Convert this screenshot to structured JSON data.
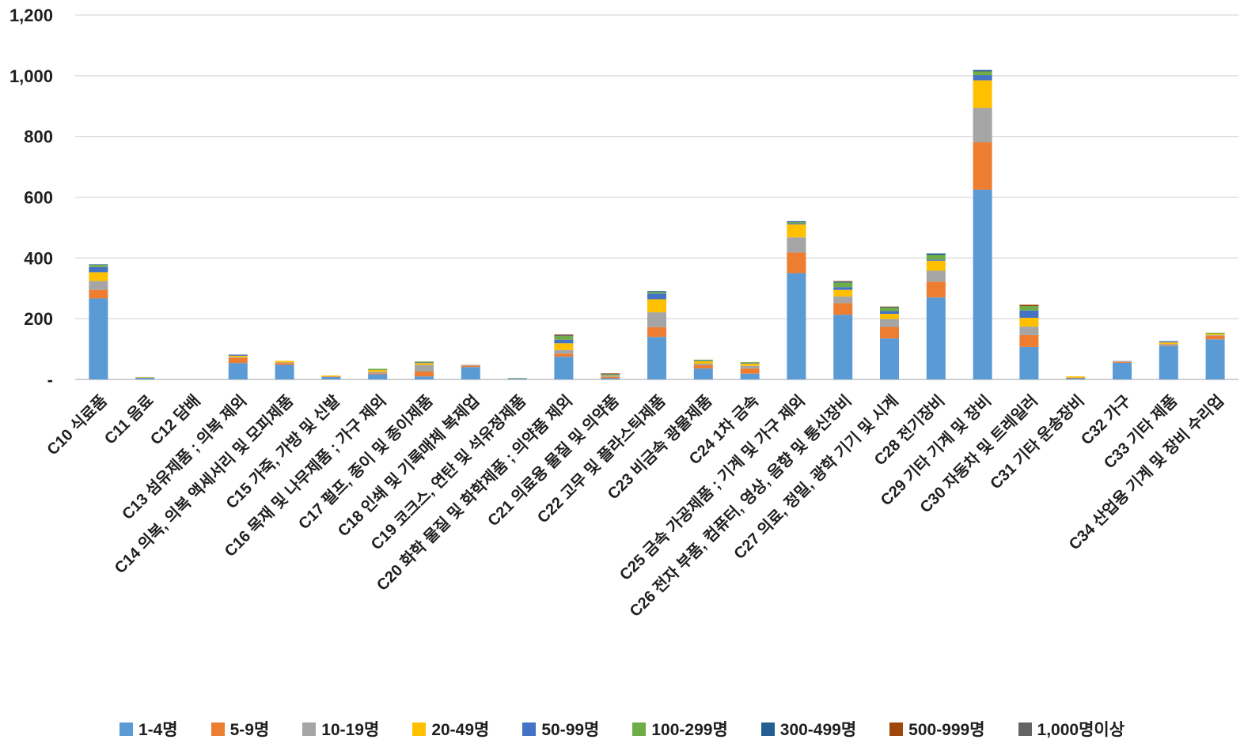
{
  "chart_data": {
    "type": "bar",
    "stacked": true,
    "title": "",
    "xlabel": "",
    "ylabel": "",
    "grid": true,
    "legend_position": "bottom",
    "ylim": [
      0,
      1200
    ],
    "ytick_step": 200,
    "ytick_labels": [
      "-",
      "200",
      "400",
      "600",
      "800",
      "1,000",
      "1,200"
    ],
    "categories": [
      "C10 식료품",
      "C11 음료",
      "C12 담배",
      "C13 섬유제품 ; 의복 제외",
      "C14 의복, 의복 액세서리 및 모피제품",
      "C15 가죽, 가방 및 신발",
      "C16 목재 및 나무제품 ; 가구 제외",
      "C17 펄프, 종이 및 종이제품",
      "C18 인쇄 및 기록매체 복제업",
      "C19 코크스, 연탄 및 석유정제품",
      "C20 화학 물질 및 화학제품 ; 의약품 제외",
      "C21 의료용 물질 및 의약품",
      "C22 고무 및 플라스틱제품",
      "C23 비금속 광물제품",
      "C24 1차 금속",
      "C25 금속 가공제품 ; 기계 및 가구 제외",
      "C26 전자 부품, 컴퓨터, 영상, 음향 및 통신장비",
      "C27 의료, 정밀, 광학 기기 및 시계",
      "C28 전기장비",
      "C29 기타 기계 및 장비",
      "C30 자동차 및 트레일러",
      "C31 기타 운송장비",
      "C32 가구",
      "C33 기타 제품",
      "C34 산업용 기계 및 장비 수리업"
    ],
    "series": [
      {
        "name": "1-4명",
        "color": "#5B9BD5",
        "values": [
          267,
          5,
          0,
          54,
          48,
          8,
          17,
          10,
          41,
          4,
          75,
          4,
          140,
          36,
          19,
          350,
          213,
          135,
          270,
          625,
          107,
          4,
          55,
          111,
          132
        ]
      },
      {
        "name": "5-9명",
        "color": "#ED7D31",
        "values": [
          28,
          1,
          0,
          17,
          6,
          2,
          3,
          16,
          5,
          0,
          10,
          4,
          32,
          11,
          17,
          68,
          38,
          38,
          52,
          156,
          39,
          2,
          3,
          3,
          12
        ]
      },
      {
        "name": "10-19명",
        "color": "#A5A5A5",
        "values": [
          29,
          0,
          0,
          2,
          2,
          0,
          5,
          22,
          2,
          0,
          12,
          3,
          49,
          5,
          9,
          50,
          22,
          26,
          36,
          113,
          28,
          0,
          3,
          3,
          2
        ]
      },
      {
        "name": "20-49명",
        "color": "#FFC000",
        "values": [
          29,
          1,
          0,
          5,
          5,
          3,
          6,
          6,
          0,
          1,
          22,
          2,
          43,
          8,
          7,
          43,
          22,
          17,
          33,
          91,
          29,
          4,
          0,
          5,
          4
        ]
      },
      {
        "name": "50-99명",
        "color": "#4472C4",
        "values": [
          17,
          0,
          0,
          4,
          0,
          0,
          0,
          2,
          0,
          0,
          12,
          2,
          19,
          2,
          2,
          3,
          9,
          9,
          4,
          17,
          24,
          0,
          0,
          4,
          0
        ]
      },
      {
        "name": "100-299명",
        "color": "#70AD47",
        "values": [
          7,
          1,
          0,
          0,
          0,
          0,
          4,
          3,
          0,
          0,
          12,
          2,
          5,
          3,
          3,
          4,
          15,
          11,
          15,
          12,
          15,
          0,
          0,
          0,
          4
        ]
      },
      {
        "name": "300-499명",
        "color": "#255E91",
        "values": [
          2,
          0,
          0,
          0,
          0,
          0,
          0,
          0,
          0,
          0,
          2,
          1,
          3,
          0,
          0,
          3,
          3,
          2,
          5,
          5,
          0,
          0,
          0,
          0,
          0
        ]
      },
      {
        "name": "500-999명",
        "color": "#9E480E",
        "values": [
          0,
          0,
          0,
          0,
          0,
          0,
          0,
          0,
          0,
          0,
          3,
          2,
          0,
          0,
          0,
          0,
          2,
          2,
          0,
          0,
          4,
          0,
          0,
          0,
          0
        ]
      },
      {
        "name": "1,000명이상",
        "color": "#636363",
        "values": [
          0,
          0,
          0,
          0,
          0,
          0,
          0,
          0,
          0,
          0,
          0,
          0,
          0,
          0,
          0,
          0,
          0,
          0,
          0,
          0,
          0,
          0,
          0,
          0,
          0
        ]
      }
    ]
  }
}
